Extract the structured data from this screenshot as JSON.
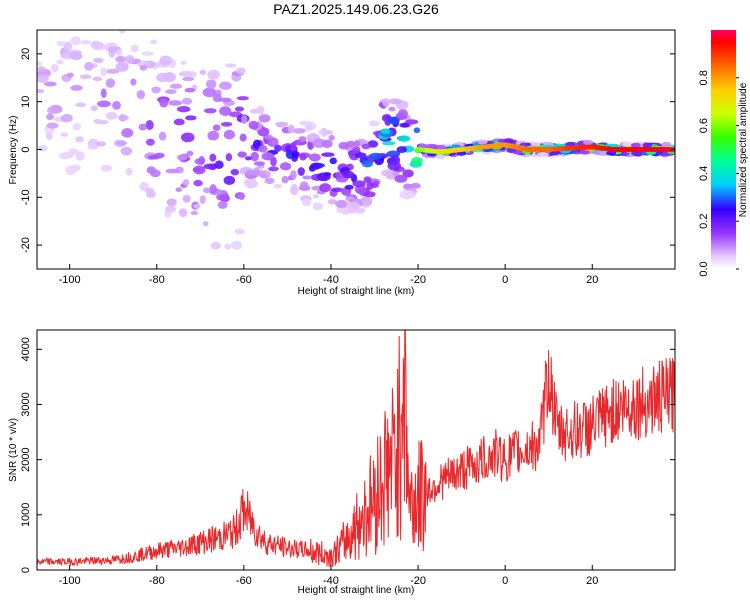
{
  "figure": {
    "title": "PAZ1.2025.149.06.23.G26"
  },
  "chart_data": [
    {
      "type": "heatmap",
      "xlabel": "Height of straight line (km)",
      "ylabel": "Frequency (Hz)",
      "xlim": [
        -107.5,
        39
      ],
      "ylim": [
        -25,
        25
      ],
      "xticks": [
        -100,
        -80,
        -60,
        -40,
        -20,
        0,
        20
      ],
      "yticks": [
        -20,
        -10,
        0,
        10,
        20
      ],
      "grid": false,
      "colorbar": {
        "label": "Normalized spectral amplitude",
        "range": [
          0,
          1
        ],
        "ticks": [
          0.0,
          0.2,
          0.4,
          0.6,
          0.8
        ],
        "colormap": [
          "#ffffff",
          "#e6ccff",
          "#9933ff",
          "#3300ff",
          "#00ccff",
          "#00ff66",
          "#ccff00",
          "#ff9900",
          "#ff0000",
          "#ff0066"
        ]
      },
      "ridge": {
        "description_points_height_km": [
          -105,
          -90,
          -85,
          -80,
          -75,
          -70,
          -65,
          -60,
          -55,
          -50,
          -45,
          -40,
          -35,
          -30,
          -28,
          -25,
          -22,
          -20,
          -15,
          -10,
          -5,
          0,
          5,
          10,
          15,
          20,
          25,
          30,
          39
        ],
        "frequency_hz": [
          12,
          10,
          9,
          5,
          3,
          0,
          -2,
          1,
          0.5,
          -1,
          -3,
          -4,
          -5,
          -3,
          3,
          2,
          -1,
          0,
          -0.5,
          0,
          0.5,
          1,
          0,
          0,
          0.3,
          0.5,
          0,
          0,
          0
        ],
        "amplitude": [
          0.1,
          0.12,
          0.15,
          0.18,
          0.2,
          0.22,
          0.24,
          0.26,
          0.24,
          0.25,
          0.26,
          0.28,
          0.32,
          0.35,
          0.4,
          0.45,
          0.5,
          0.6,
          0.7,
          0.75,
          0.8,
          0.8,
          0.85,
          0.85,
          0.9,
          0.92,
          0.95,
          0.96,
          0.98
        ]
      }
    },
    {
      "type": "line",
      "xlabel": "Height of straight line (km)",
      "ylabel": "SNR (10 * v/v)",
      "xlim": [
        -107.5,
        39
      ],
      "ylim": [
        0,
        4350
      ],
      "xticks": [
        -100,
        -80,
        -60,
        -40,
        -20,
        0,
        20
      ],
      "yticks": [
        0,
        1000,
        2000,
        3000,
        4000
      ],
      "grid": false,
      "series": [
        {
          "color": "#e8282b",
          "x": [
            -107,
            -100,
            -90,
            -85,
            -80,
            -75,
            -70,
            -65,
            -62,
            -60,
            -57,
            -55,
            -50,
            -45,
            -40,
            -38,
            -35,
            -30,
            -28,
            -26,
            -25,
            -24,
            -23.5,
            -22,
            -20,
            -15,
            -10,
            -5,
            -2,
            0,
            2,
            5,
            8,
            10,
            12,
            15,
            20,
            25,
            30,
            35,
            39
          ],
          "y": [
            150,
            150,
            180,
            250,
            350,
            400,
            500,
            600,
            700,
            1100,
            700,
            500,
            400,
            350,
            250,
            400,
            700,
            1300,
            1700,
            1900,
            2200,
            2500,
            4300,
            1200,
            1300,
            1600,
            1800,
            2000,
            2100,
            2000,
            2100,
            2200,
            2300,
            3600,
            2500,
            2500,
            2600,
            2900,
            3000,
            3100,
            3200
          ]
        }
      ]
    }
  ]
}
